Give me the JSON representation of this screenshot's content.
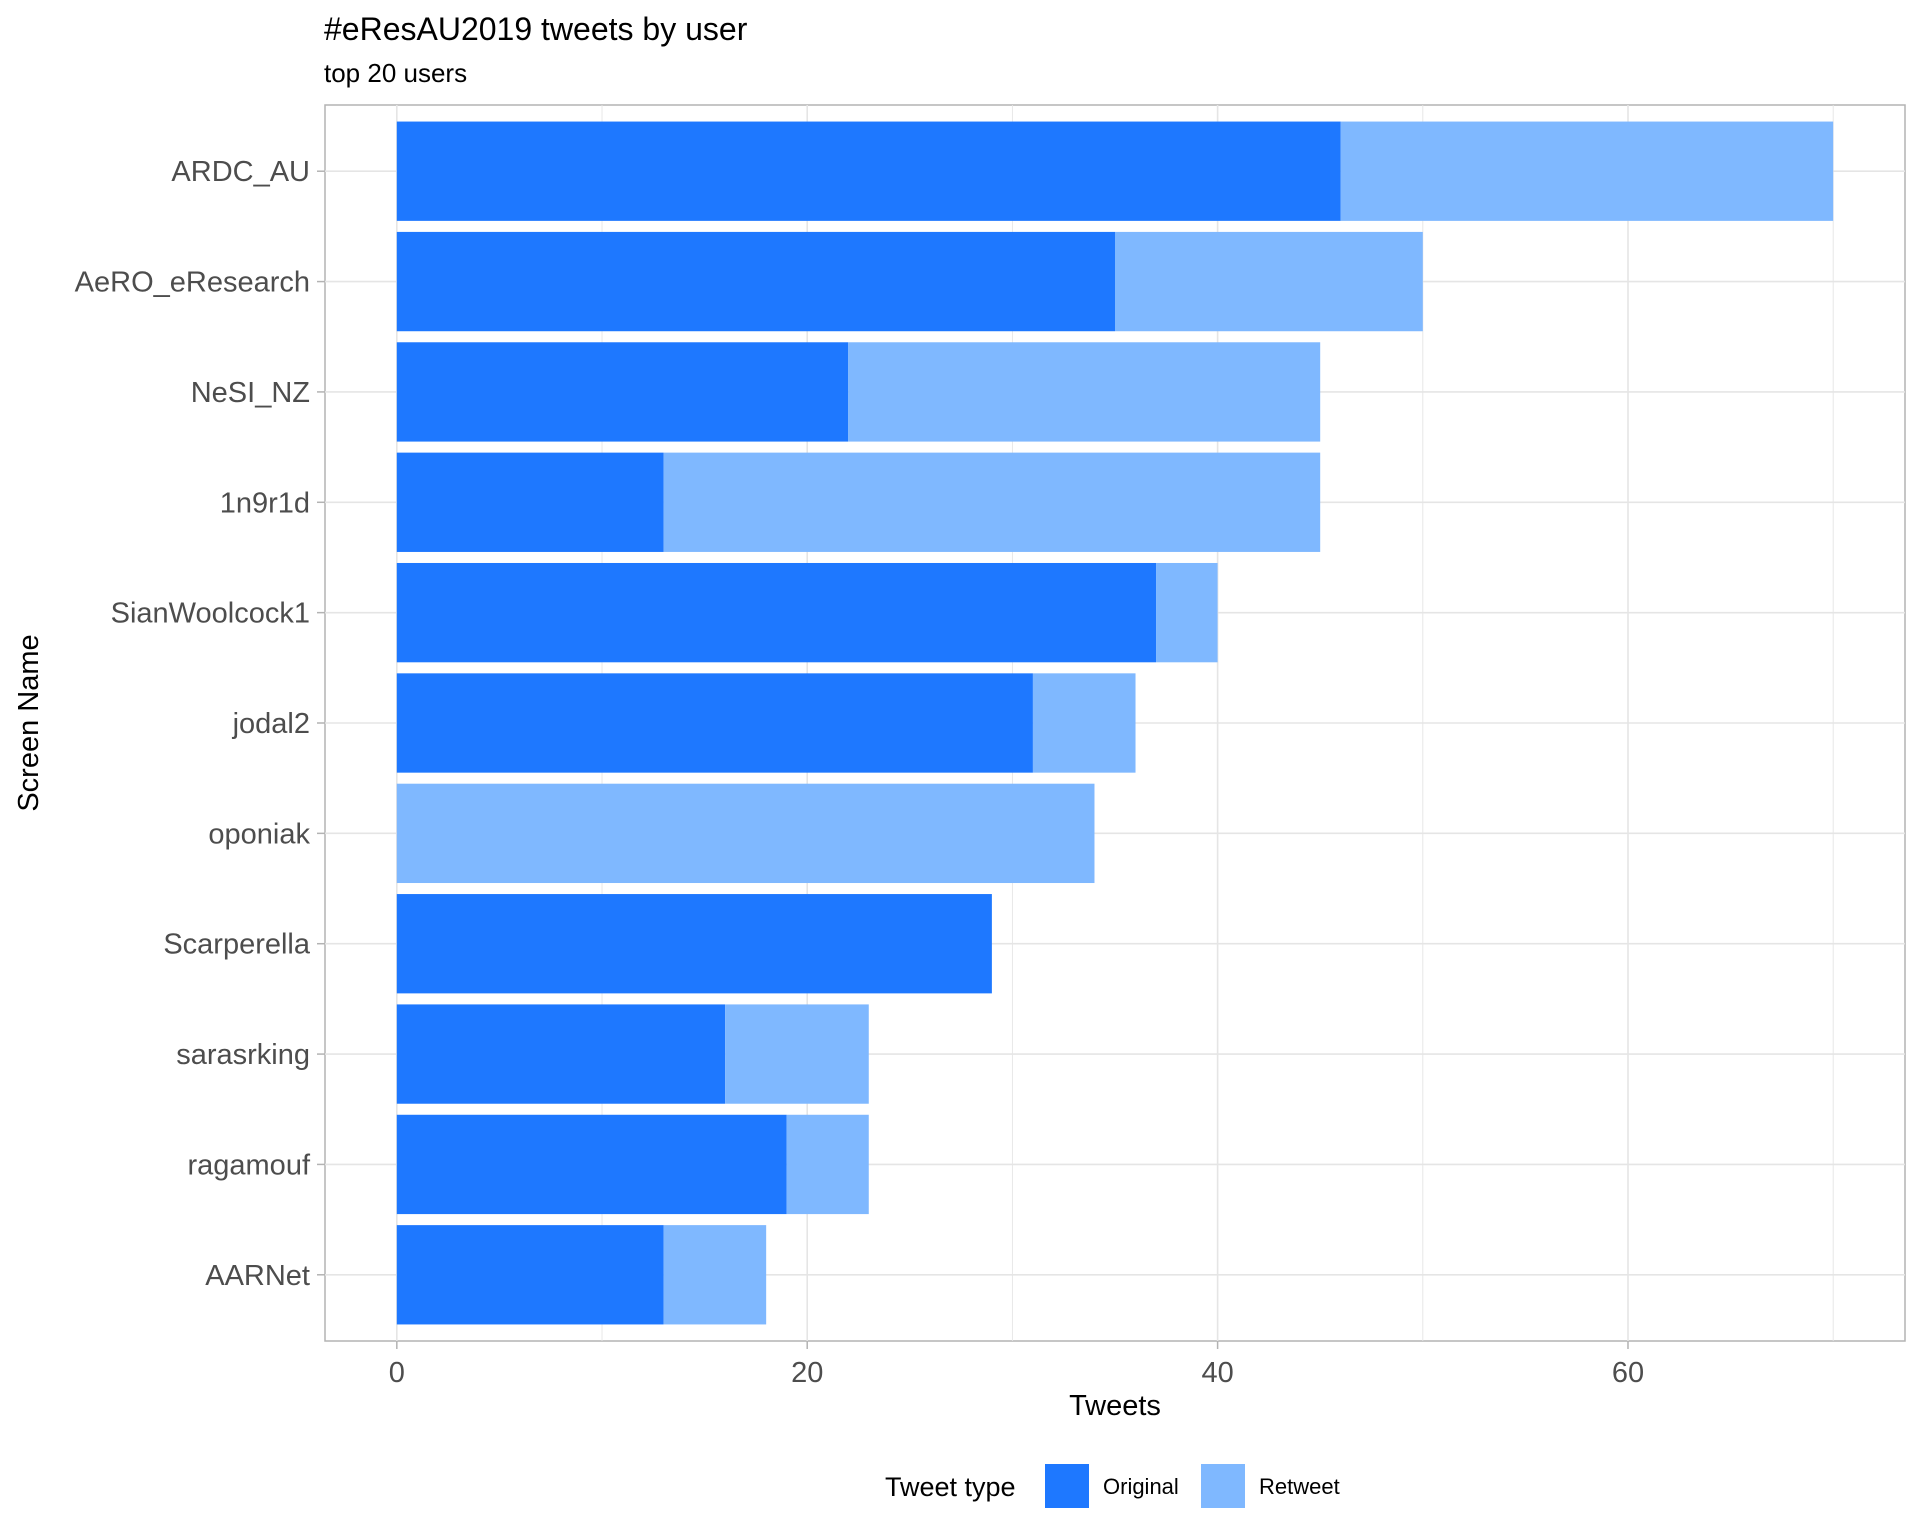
{
  "chart_data": {
    "type": "bar",
    "orientation": "horizontal",
    "stacked": true,
    "title": "#eResAU2019 tweets by user",
    "subtitle": "top 20 users",
    "xlabel": "Tweets",
    "ylabel": "Screen Name",
    "xlim": [
      -3.5,
      73.5
    ],
    "xticks": [
      0,
      20,
      40,
      60
    ],
    "grid": true,
    "legend_title": "Tweet type",
    "legend_position": "bottom",
    "categories": [
      "ARDC_AU",
      "AeRO_eResearch",
      "NeSI_NZ",
      "1n9r1d",
      "SianWoolcock1",
      "jodal2",
      "oponiak",
      "Scarperella",
      "sarasrking",
      "ragamouf",
      "AARNet"
    ],
    "series": [
      {
        "name": "Original",
        "color": "#1e78ff",
        "values": [
          46,
          35,
          22,
          13,
          37,
          31,
          0,
          29,
          16,
          19,
          13
        ]
      },
      {
        "name": "Retweet",
        "color": "#7fb8ff",
        "values": [
          24,
          15,
          23,
          32,
          3,
          5,
          34,
          0,
          7,
          4,
          5
        ]
      }
    ]
  }
}
